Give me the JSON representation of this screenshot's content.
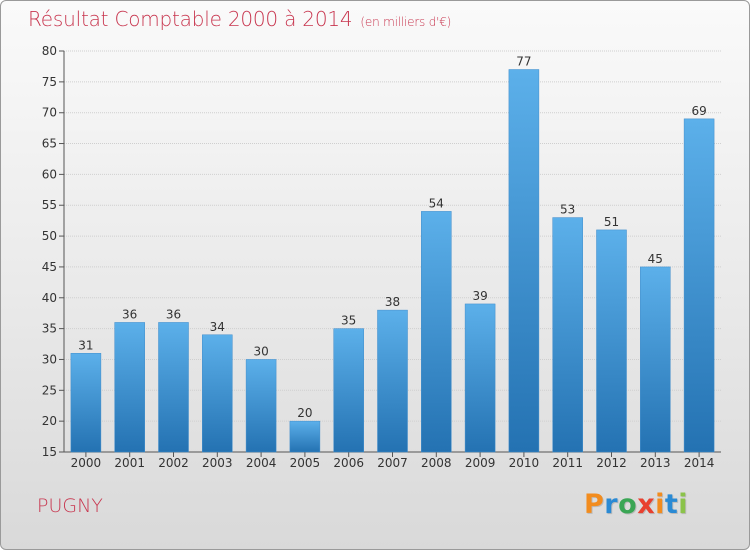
{
  "header": {
    "title": "Résultat Comptable 2000 à 2014",
    "subtitle": "(en milliers d'€)"
  },
  "footer": {
    "place": "PUGNY",
    "logo": {
      "text": "Proxiti",
      "colors": [
        "#f28c1e",
        "#2a8ad4",
        "#3aa655",
        "#e8402f",
        "#f28c1e",
        "#2a8ad4",
        "#8bc34a"
      ]
    }
  },
  "colors": {
    "bar_light": "#5cb0ea",
    "bar_dark": "#2472b2",
    "title": "#c8364f"
  },
  "chart_data": {
    "type": "bar",
    "categories": [
      "2000",
      "2001",
      "2002",
      "2003",
      "2004",
      "2005",
      "2006",
      "2007",
      "2008",
      "2009",
      "2010",
      "2011",
      "2012",
      "2013",
      "2014"
    ],
    "values": [
      31,
      36,
      36,
      34,
      30,
      20,
      35,
      38,
      54,
      39,
      77,
      53,
      51,
      45,
      69
    ],
    "title": "Résultat Comptable 2000 à 2014",
    "subtitle": "(en milliers d'€)",
    "xlabel": "",
    "ylabel": "",
    "ylim": [
      15,
      80
    ],
    "yticks": [
      15,
      20,
      25,
      30,
      35,
      40,
      45,
      50,
      55,
      60,
      65,
      70,
      75,
      80
    ],
    "grid": true,
    "legend": "none"
  }
}
